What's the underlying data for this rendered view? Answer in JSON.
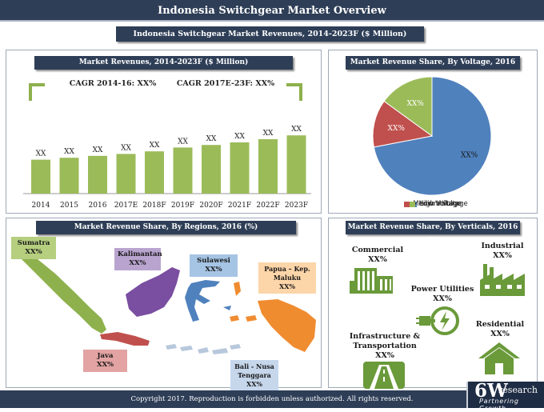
{
  "header": {
    "title": "Indonesia Switchgear Market Overview",
    "subtitle": "Indonesia Switchgear Market Revenues, 2014-2023F ($ Million)"
  },
  "revenues": {
    "title": "Market Revenues, 2014-2023F ($ Million)",
    "cagr1": "CAGR 2014-16:  XX%",
    "cagr2": "CAGR 2017E-23F:  XX%"
  },
  "chart_data": [
    {
      "type": "bar",
      "title": "Market Revenues, 2014-2023F ($ Million)",
      "categories": [
        "2014",
        "2015",
        "2016",
        "2017E",
        "2018F",
        "2019F",
        "2020F",
        "2021F",
        "2022F",
        "2023F"
      ],
      "values": [
        53,
        56,
        59,
        62,
        66,
        72,
        76,
        80,
        85,
        91
      ],
      "data_labels": [
        "XX",
        "XX",
        "XX",
        "XX",
        "XX",
        "XX",
        "XX",
        "XX",
        "XX",
        "XX"
      ],
      "colors": [
        "#9bbb59"
      ]
    },
    {
      "type": "pie",
      "title": "Market Revenue Share, By Voltage, 2016 (%)",
      "categories": [
        "Low Voltage",
        "Medium Voltage",
        "High Voltage"
      ],
      "values": [
        72,
        13,
        15
      ],
      "data_labels": [
        "XX%",
        "XX%",
        "XX%"
      ],
      "colors": [
        "#4f81bd",
        "#c0504d",
        "#9bbb59"
      ]
    }
  ],
  "voltage": {
    "title": "Market Revenue Share, By Voltage, 2016 (%)"
  },
  "regions": {
    "title": "Market Revenue Share, By Regions, 2016 (%)",
    "items": [
      {
        "name": "Sumatra",
        "value": "XX%"
      },
      {
        "name": "Kalimantan",
        "value": "XX%"
      },
      {
        "name": "Sulawesi",
        "value": "XX%"
      },
      {
        "name": "Papua – Kep. Maluku",
        "value": "XX%"
      },
      {
        "name": "Java",
        "value": "XX%"
      },
      {
        "name": "Bali - Nusa Tenggara",
        "value": "XX%"
      }
    ]
  },
  "verticals": {
    "title": "Market Revenue Share, By Verticals, 2016 (%)",
    "items": [
      {
        "name": "Commercial",
        "value": "XX%"
      },
      {
        "name": "Industrial",
        "value": "XX%"
      },
      {
        "name": "Power Utilities",
        "value": "XX%"
      },
      {
        "name": "Residential",
        "value": "XX%"
      },
      {
        "name": "Infrastructure & Transportation",
        "value": "XX%"
      }
    ]
  },
  "footer": {
    "copyright": "Copyright 2017. Reproduction is forbidden unless authorized. All rights reserved."
  },
  "logo": {
    "big": "6W",
    "small": "research",
    "tagline": "Partnering Growth"
  }
}
